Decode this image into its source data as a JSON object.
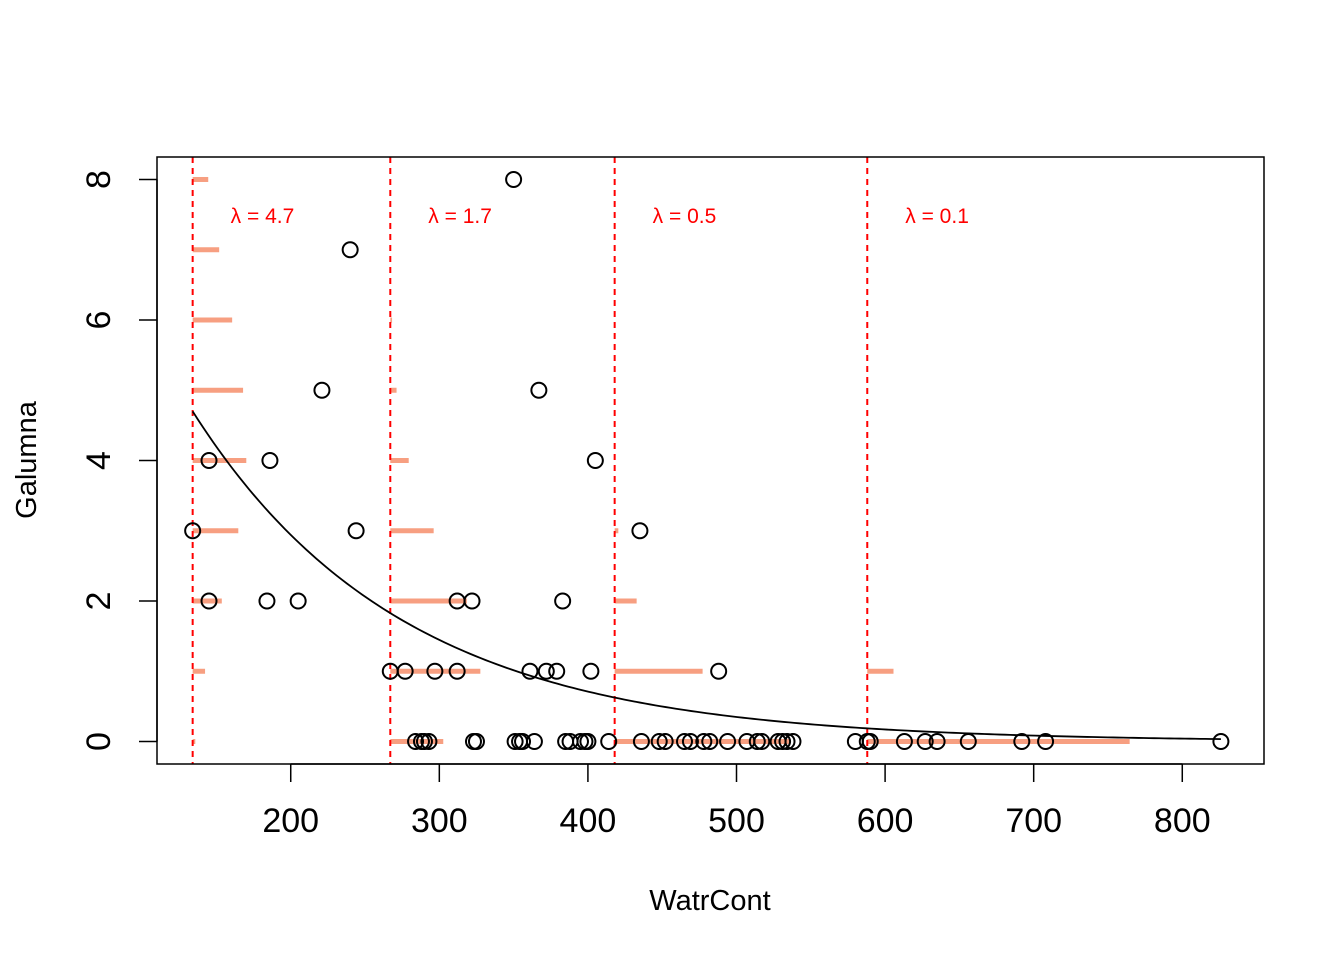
{
  "chart_data": {
    "type": "scatter",
    "title": "",
    "xlabel": "WatrCont",
    "ylabel": "Galumna",
    "xlim": [
      110,
      855
    ],
    "ylim": [
      -0.32,
      8.32
    ],
    "x_ticks": [
      200,
      300,
      400,
      500,
      600,
      700,
      800
    ],
    "y_ticks": [
      0,
      2,
      4,
      6,
      8
    ],
    "grid": false,
    "legend": "none",
    "colors": {
      "points": "#000000",
      "curve": "#000000",
      "cutoff": "#ff0000",
      "poisson_bars": "#f79f81"
    },
    "points": [
      [
        134,
        3
      ],
      [
        145,
        4
      ],
      [
        145,
        2
      ],
      [
        184,
        2
      ],
      [
        186,
        4
      ],
      [
        205,
        2
      ],
      [
        221,
        5
      ],
      [
        240,
        7
      ],
      [
        244,
        3
      ],
      [
        267,
        1
      ],
      [
        277,
        1
      ],
      [
        284,
        0
      ],
      [
        288,
        0
      ],
      [
        290,
        0
      ],
      [
        293,
        0
      ],
      [
        297,
        1
      ],
      [
        312,
        1
      ],
      [
        312,
        2
      ],
      [
        322,
        2
      ],
      [
        323,
        0
      ],
      [
        325,
        0
      ],
      [
        350,
        8
      ],
      [
        351,
        0
      ],
      [
        354,
        0
      ],
      [
        356,
        0
      ],
      [
        361,
        1
      ],
      [
        364,
        0
      ],
      [
        367,
        5
      ],
      [
        372,
        1
      ],
      [
        379,
        1
      ],
      [
        383,
        2
      ],
      [
        385,
        0
      ],
      [
        388,
        0
      ],
      [
        395,
        0
      ],
      [
        398,
        0
      ],
      [
        400,
        0
      ],
      [
        402,
        1
      ],
      [
        405,
        4
      ],
      [
        414,
        0
      ],
      [
        435,
        3
      ],
      [
        436,
        0
      ],
      [
        448,
        0
      ],
      [
        452,
        0
      ],
      [
        465,
        0
      ],
      [
        469,
        0
      ],
      [
        478,
        0
      ],
      [
        482,
        0
      ],
      [
        488,
        1
      ],
      [
        494,
        0
      ],
      [
        507,
        0
      ],
      [
        514,
        0
      ],
      [
        517,
        0
      ],
      [
        528,
        0
      ],
      [
        531,
        0
      ],
      [
        534,
        0
      ],
      [
        538,
        0
      ],
      [
        580,
        0
      ],
      [
        588,
        0
      ],
      [
        590,
        0
      ],
      [
        613,
        0
      ],
      [
        627,
        0
      ],
      [
        635,
        0
      ],
      [
        656,
        0
      ],
      [
        692,
        0
      ],
      [
        708,
        0
      ],
      [
        826,
        0
      ]
    ],
    "fit_curve": {
      "x_from": 134,
      "x_to": 826,
      "lambda_at_start": 4.7,
      "rate": -0.0071
    },
    "poisson_panels": [
      {
        "x": 134,
        "lambda": 4.7,
        "label": "λ = 4.7"
      },
      {
        "x": 267,
        "lambda": 1.7,
        "label": "λ = 1.7"
      },
      {
        "x": 418,
        "lambda": 0.5,
        "label": "λ = 0.5"
      },
      {
        "x": 588,
        "lambda": 0.1,
        "label": "λ = 0.1"
      }
    ],
    "poisson_max_count": 8,
    "poisson_bar_scale": 290
  }
}
